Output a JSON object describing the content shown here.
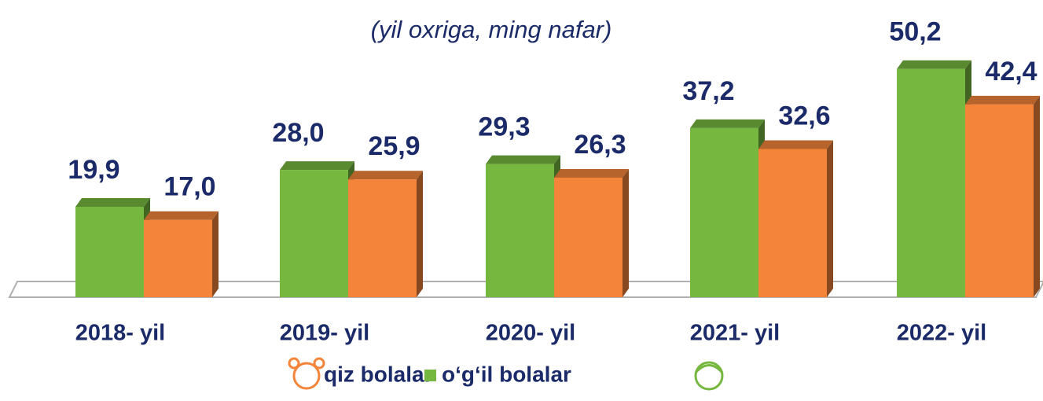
{
  "chart_data": {
    "type": "bar3d",
    "subtitle": "(yil oxriga, ming nafar)",
    "categories": [
      "2018- yil",
      "2019- yil",
      "2020- yil",
      "2021- yil",
      "2022- yil"
    ],
    "series": [
      {
        "name": "o‘g‘il bolalar",
        "color": "#76b83f",
        "values": [
          19.9,
          28.0,
          29.3,
          37.2,
          50.2
        ],
        "value_labels": [
          "19,9",
          "28,0",
          "29,3",
          "37,2",
          "50,2"
        ]
      },
      {
        "name": "qiz bolalar",
        "color": "#f3843a",
        "values": [
          17.0,
          25.9,
          26.3,
          32.6,
          42.4
        ],
        "value_labels": [
          "17,0",
          "25,9",
          "26,3",
          "32,6",
          "42,4"
        ]
      }
    ],
    "ylim": [
      0,
      55
    ]
  }
}
